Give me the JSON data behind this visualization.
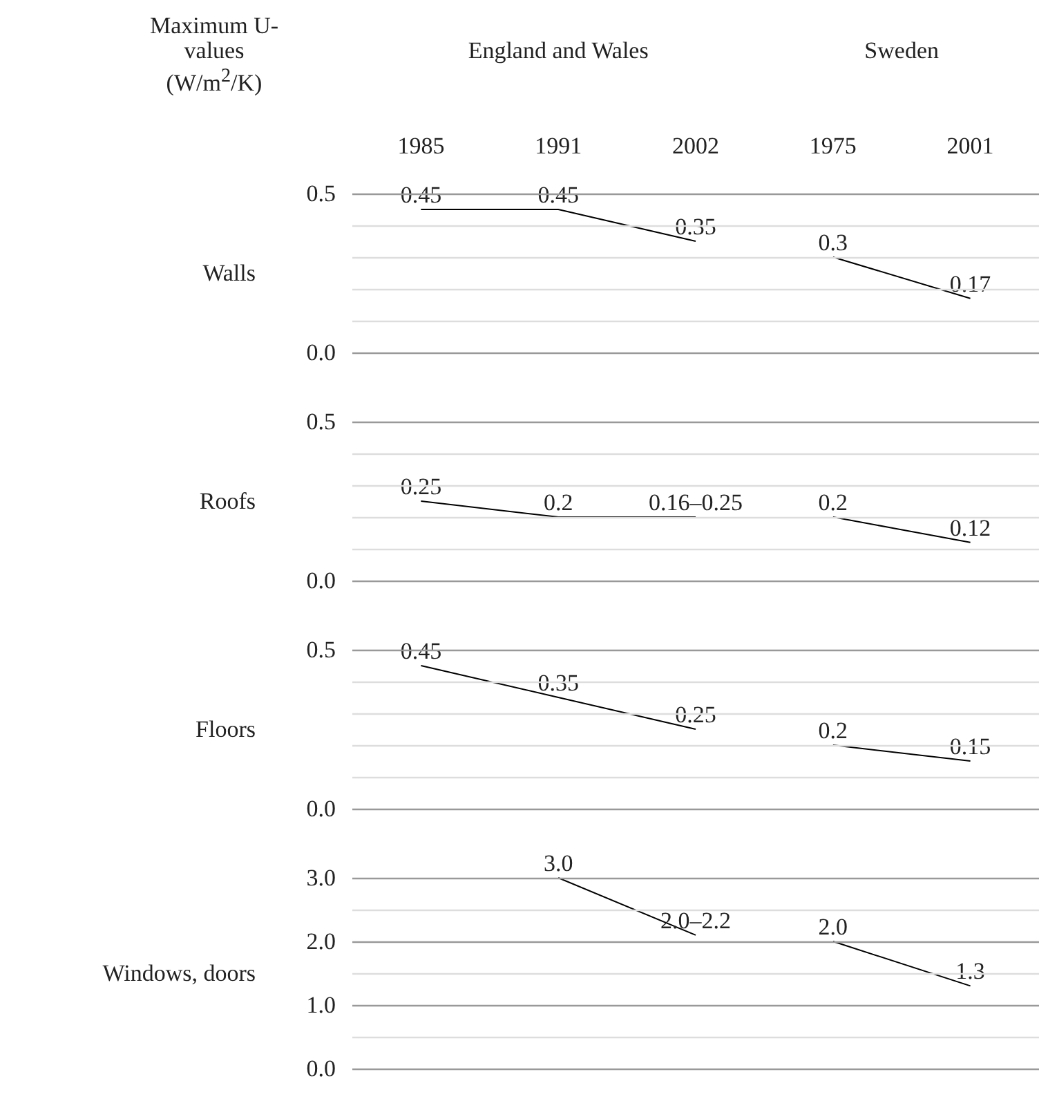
{
  "chart_data": [
    {
      "type": "line",
      "ylabel": "Walls",
      "annotations": [
        "Maximum U-values (W/m$^{2}$/K)",
        "England and Wales",
        "Sweden"
      ],
      "categories": [
        "1985",
        "1991",
        "2002",
        "1975",
        "2001"
      ],
      "marker": "none",
      "grid": true,
      "ylim": [
        0,
        0.5
      ],
      "yticks": [
        {
          "value": 0,
          "label": "0.0"
        },
        {
          "value": 0.1,
          "label": null
        },
        {
          "value": 0.2,
          "label": null
        },
        {
          "value": 0.3,
          "label": null
        },
        {
          "value": 0.4,
          "label": null
        },
        {
          "value": 0.5,
          "label": "0.5"
        }
      ],
      "series": [
        {
          "color": "#000000",
          "values": [
            0.45,
            0.45,
            0.35,
            null,
            null
          ],
          "value_labels": [
            "0.45",
            "0.45",
            "0.35",
            null,
            null
          ]
        },
        {
          "color": "#000000",
          "values": [
            null,
            null,
            null,
            0.3,
            0.17
          ],
          "value_labels": [
            null,
            null,
            null,
            "0.3",
            "0.17"
          ]
        }
      ]
    },
    {
      "type": "line",
      "ylabel": "Roofs",
      "categories": [
        "1985",
        "1991",
        "2002",
        "1975",
        "2001"
      ],
      "tick_labels": "y",
      "marker": "none",
      "grid": true,
      "ylim": [
        0,
        0.5
      ],
      "yticks": [
        {
          "value": 0,
          "label": "0.0"
        },
        {
          "value": 0.1,
          "label": null
        },
        {
          "value": 0.2,
          "label": null
        },
        {
          "value": 0.3,
          "label": null
        },
        {
          "value": 0.4,
          "label": null
        },
        {
          "value": 0.5,
          "label": "0.5"
        }
      ],
      "series": [
        {
          "color": "#000000",
          "values": [
            0.25,
            0.2,
            0.2,
            null,
            null
          ],
          "value_labels": [
            "0.25",
            "0.2",
            "0.16–0.25",
            null,
            null
          ]
        },
        {
          "color": "#000000",
          "values": [
            null,
            null,
            null,
            0.2,
            0.12
          ],
          "value_labels": [
            null,
            null,
            null,
            "0.2",
            "0.12"
          ]
        }
      ]
    },
    {
      "type": "line",
      "ylabel": "Floors",
      "categories": [
        "1985",
        "1991",
        "2002",
        "1975",
        "2001"
      ],
      "tick_labels": "y",
      "marker": "none",
      "grid": true,
      "ylim": [
        0,
        0.5
      ],
      "yticks": [
        {
          "value": 0,
          "label": "0.0"
        },
        {
          "value": 0.1,
          "label": null
        },
        {
          "value": 0.2,
          "label": null
        },
        {
          "value": 0.3,
          "label": null
        },
        {
          "value": 0.4,
          "label": null
        },
        {
          "value": 0.5,
          "label": "0.5"
        }
      ],
      "series": [
        {
          "color": "#000000",
          "values": [
            0.45,
            0.35,
            0.25,
            null,
            null
          ],
          "value_labels": [
            "0.45",
            "0.35",
            "0.25",
            null,
            null
          ]
        },
        {
          "color": "#000000",
          "values": [
            null,
            null,
            null,
            0.2,
            0.15
          ],
          "value_labels": [
            null,
            null,
            null,
            "0.2",
            "0.15"
          ]
        }
      ]
    },
    {
      "type": "line",
      "ylabel": "Windows, doors",
      "categories": [
        "1985",
        "1991",
        "2002",
        "1975",
        "2001"
      ],
      "tick_labels": "y",
      "marker": "none",
      "grid": true,
      "ylim": [
        0,
        3.0
      ],
      "yticks": [
        {
          "value": 0,
          "label": "0.0"
        },
        {
          "value": 0.5,
          "label": null
        },
        {
          "value": 1,
          "label": "1.0"
        },
        {
          "value": 1.5,
          "label": null
        },
        {
          "value": 2,
          "label": "2.0"
        },
        {
          "value": 2.5,
          "label": null
        },
        {
          "value": 3,
          "label": "3.0"
        }
      ],
      "series": [
        {
          "color": "#000000",
          "values": [
            null,
            3.0,
            2.1,
            null,
            null
          ],
          "value_labels": [
            null,
            "3.0",
            "2.0–2.2",
            null,
            null
          ]
        },
        {
          "color": "#000000",
          "values": [
            null,
            null,
            null,
            2.0,
            1.3
          ],
          "value_labels": [
            null,
            null,
            null,
            "2.0",
            "1.3"
          ]
        }
      ]
    }
  ]
}
